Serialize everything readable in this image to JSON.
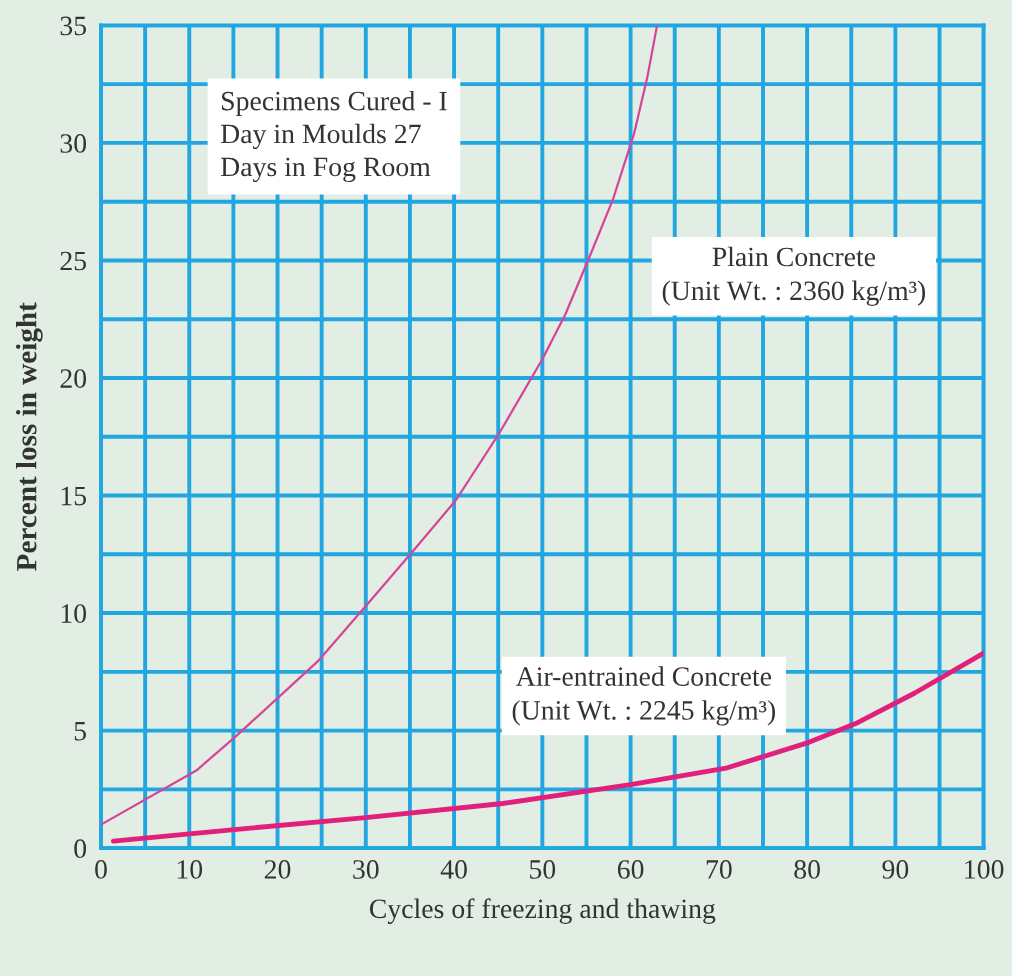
{
  "chart_data": {
    "type": "line",
    "xlabel": "Cycles of freezing and thawing",
    "ylabel": "Percent loss in weight",
    "xlim": [
      0,
      100
    ],
    "xticks": [
      0,
      {
        "value": 5,
        "label": null
      },
      10,
      {
        "value": 15,
        "label": null
      },
      20,
      {
        "value": 25,
        "label": null
      },
      30,
      {
        "value": 35,
        "label": null
      },
      40,
      {
        "value": 45,
        "label": null
      },
      50,
      {
        "value": 55,
        "label": null
      },
      60,
      {
        "value": 65,
        "label": null
      },
      70,
      {
        "value": 75,
        "label": null
      },
      80,
      {
        "value": 85,
        "label": null
      },
      90,
      {
        "value": 95,
        "label": null
      },
      100
    ],
    "ylim": [
      0,
      35
    ],
    "yticks": [
      0,
      {
        "value": 2.5,
        "label": null
      },
      5,
      {
        "value": 7.5,
        "label": null
      },
      10,
      {
        "value": 12.5,
        "label": null
      },
      15,
      {
        "value": 17.5,
        "label": null
      },
      20,
      {
        "value": 22.5,
        "label": null
      },
      25,
      {
        "value": 27.5,
        "label": null
      },
      30,
      {
        "value": 32.5,
        "label": null
      },
      35
    ],
    "grid": true,
    "legend": false,
    "series": [
      {
        "name": "Plain Concrete\n(Unit Wt. : 2360 kg/m³)",
        "color": "#d6449a",
        "x": [
          0,
          10.8,
          15.4,
          24.7,
          30,
          35.5,
          40.2,
          45.2,
          50,
          52.6,
          55.4,
          58,
          60.4,
          61.9,
          63
        ],
        "values": [
          1.0,
          3.3,
          4.8,
          8.0,
          10.3,
          12.7,
          14.8,
          17.7,
          20.8,
          22.7,
          25.2,
          27.6,
          30.4,
          32.8,
          35
        ]
      },
      {
        "name": "Air-entrained Concrete\n(Unit Wt. : 2245 kg/m³)",
        "color": "#e0207a",
        "x": [
          1.4,
          15.4,
          30,
          45.5,
          60,
          70.8,
          80.2,
          85.5,
          92.2,
          100
        ],
        "values": [
          0.3,
          0.8,
          1.3,
          1.9,
          2.7,
          3.4,
          4.5,
          5.3,
          6.6,
          8.3
        ]
      }
    ],
    "annotations": [
      "Specimens Cured - I\nDay in Moulds 27\nDays in Fog Room"
    ]
  }
}
